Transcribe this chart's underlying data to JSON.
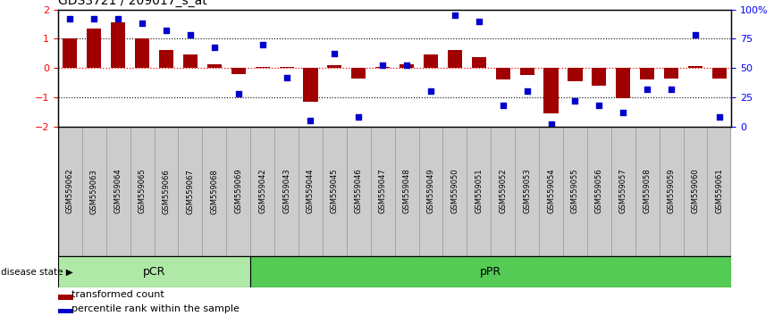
{
  "title": "GDS3721 / 209017_s_at",
  "samples": [
    "GSM559062",
    "GSM559063",
    "GSM559064",
    "GSM559065",
    "GSM559066",
    "GSM559067",
    "GSM559068",
    "GSM559069",
    "GSM559042",
    "GSM559043",
    "GSM559044",
    "GSM559045",
    "GSM559046",
    "GSM559047",
    "GSM559048",
    "GSM559049",
    "GSM559050",
    "GSM559051",
    "GSM559052",
    "GSM559053",
    "GSM559054",
    "GSM559055",
    "GSM559056",
    "GSM559057",
    "GSM559058",
    "GSM559059",
    "GSM559060",
    "GSM559061"
  ],
  "bar_values": [
    1.0,
    1.35,
    1.55,
    1.0,
    0.6,
    0.45,
    0.12,
    -0.2,
    0.02,
    0.02,
    -1.15,
    0.1,
    -0.35,
    0.02,
    0.12,
    0.45,
    0.62,
    0.38,
    -0.38,
    -0.25,
    -1.55,
    -0.45,
    -0.62,
    -1.05,
    -0.38,
    -0.35,
    0.05,
    -0.35
  ],
  "dot_values": [
    92,
    92,
    92,
    88,
    82,
    78,
    68,
    28,
    70,
    42,
    5,
    62,
    8,
    52,
    52,
    30,
    95,
    90,
    18,
    30,
    2,
    22,
    18,
    12,
    32,
    32,
    78,
    8
  ],
  "pCR_count": 8,
  "pPR_count": 20,
  "bar_color": "#a00000",
  "dot_color": "#0000cc",
  "ylim": [
    -2,
    2
  ],
  "yticks_left": [
    -2,
    -1,
    0,
    1,
    2
  ],
  "yticks_right": [
    0,
    25,
    50,
    75,
    100
  ],
  "pCR_color": "#b0e8a8",
  "pPR_color": "#55cc55",
  "label_bar": "transformed count",
  "label_dot": "percentile rank within the sample",
  "disease_state_label": "disease state"
}
